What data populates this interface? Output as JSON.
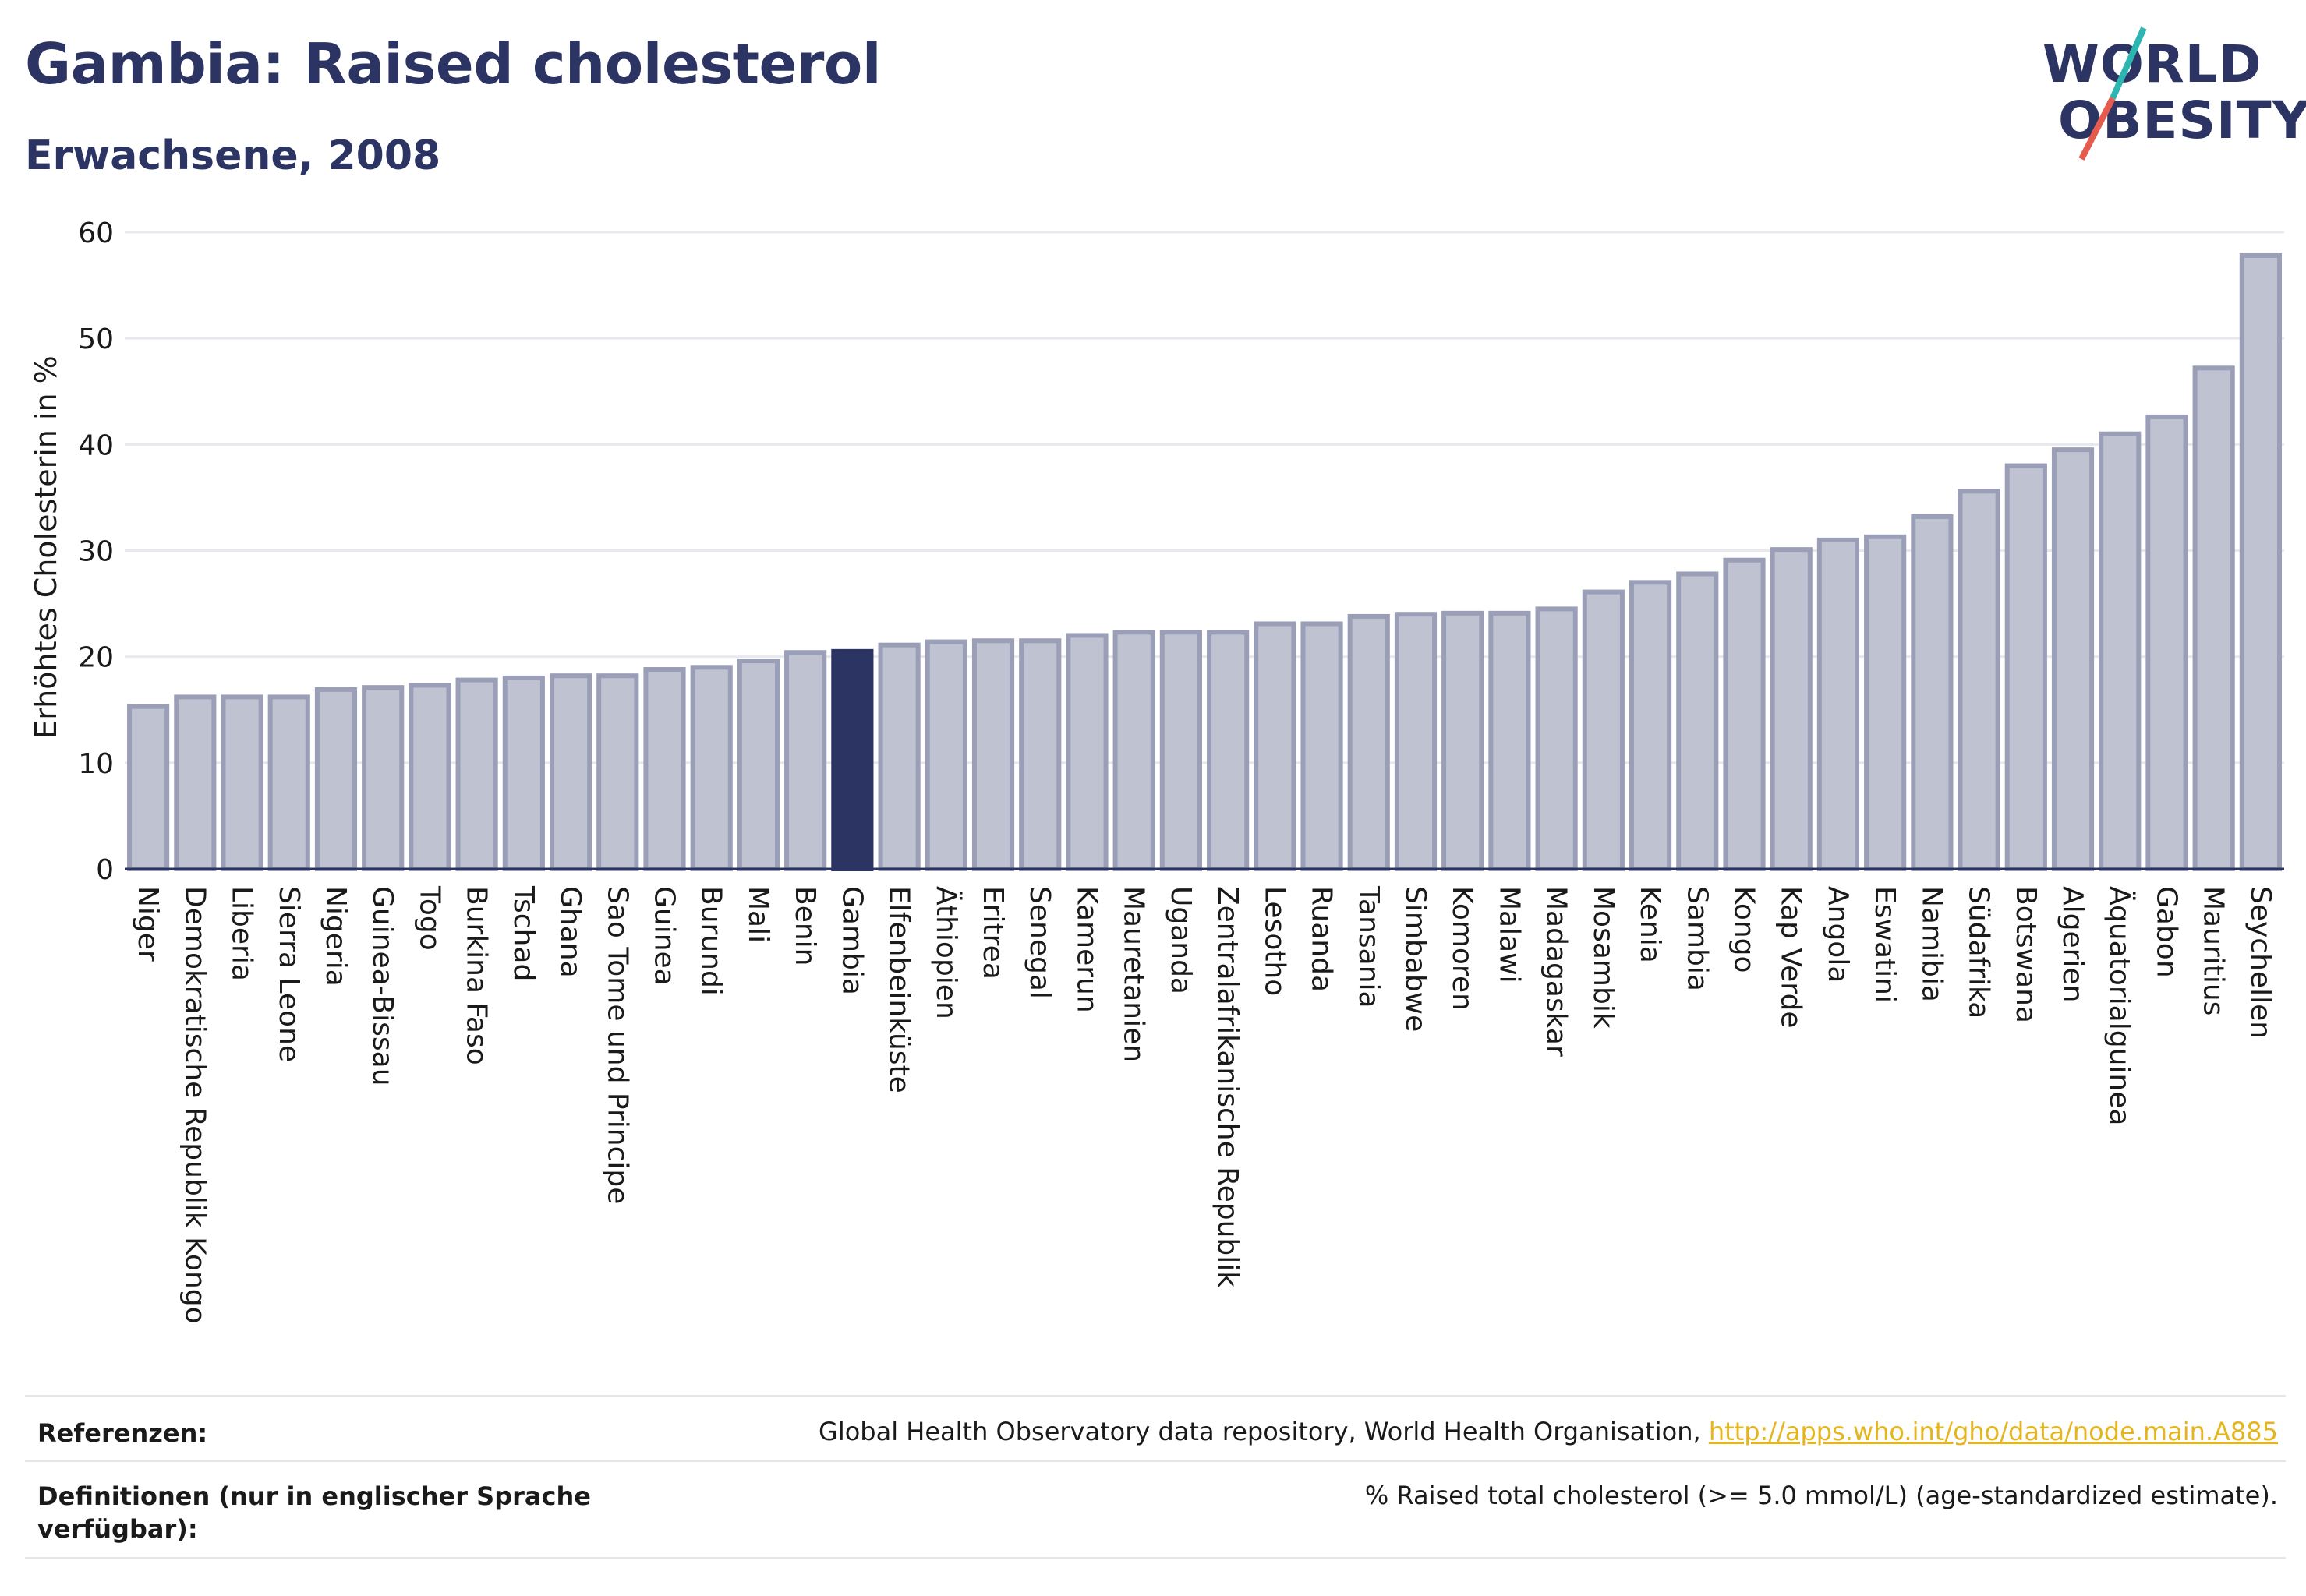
{
  "header": {
    "title": "Gambia: Raised cholesterol",
    "subtitle": "Erwachsene, 2008"
  },
  "logo": {
    "line1": "WORLD",
    "line2": "OBESITY",
    "colors": {
      "text": "#2b3462",
      "slash_teal": "#2cb5b1",
      "slash_red": "#e55c4f"
    }
  },
  "chart_data": {
    "type": "bar",
    "title": "Gambia: Raised cholesterol",
    "subtitle": "Erwachsene, 2008",
    "ylabel": "Erhöhtes Cholesterin in %",
    "xlabel": "",
    "ylim": [
      0,
      60
    ],
    "yticks": [
      0,
      10,
      20,
      30,
      40,
      50,
      60
    ],
    "grid": true,
    "highlight": "Gambia",
    "colors": {
      "bar": "#bfc2d0",
      "bar_edge": "#9a9fb7",
      "highlight": "#2b3462",
      "grid": "#e8e8ee"
    },
    "categories": [
      "Niger",
      "Demokratische Republik Kongo",
      "Liberia",
      "Sierra Leone",
      "Nigeria",
      "Guinea-Bissau",
      "Togo",
      "Burkina Faso",
      "Tschad",
      "Ghana",
      "Sao Tome und Principe",
      "Guinea",
      "Burundi",
      "Mali",
      "Benin",
      "Gambia",
      "Elfenbeinküste",
      "Äthiopien",
      "Eritrea",
      "Senegal",
      "Kamerun",
      "Mauretanien",
      "Uganda",
      "Zentralafrikanische Republik",
      "Lesotho",
      "Ruanda",
      "Tansania",
      "Simbabwe",
      "Komoren",
      "Malawi",
      "Madagaskar",
      "Mosambik",
      "Kenia",
      "Sambia",
      "Kongo",
      "Kap Verde",
      "Angola",
      "Eswatini",
      "Namibia",
      "Südafrika",
      "Botswana",
      "Algerien",
      "Äquatorialguinea",
      "Gabon",
      "Mauritius",
      "Seychellen"
    ],
    "values": [
      15.3,
      16.2,
      16.2,
      16.2,
      16.9,
      17.1,
      17.3,
      17.8,
      18.0,
      18.2,
      18.2,
      18.8,
      19.0,
      19.6,
      20.4,
      20.5,
      21.1,
      21.4,
      21.5,
      21.5,
      22.0,
      22.3,
      22.3,
      22.3,
      23.1,
      23.1,
      23.8,
      24.0,
      24.1,
      24.1,
      24.5,
      26.1,
      27.0,
      27.8,
      29.1,
      30.1,
      31.0,
      31.3,
      33.2,
      35.6,
      38.0,
      39.5,
      41.0,
      42.6,
      47.2,
      57.8
    ]
  },
  "footer": {
    "references_label": "Referenzen:",
    "references_text": "Global Health Observatory data repository, World Health Organisation,",
    "references_link": "http://apps.who.int/gho/data/node.main.A885",
    "definitions_label": "Definitionen (nur in englischer Sprache verfügbar):",
    "definitions_text": "% Raised total cholesterol (>= 5.0 mmol/L) (age-standardized estimate)."
  }
}
